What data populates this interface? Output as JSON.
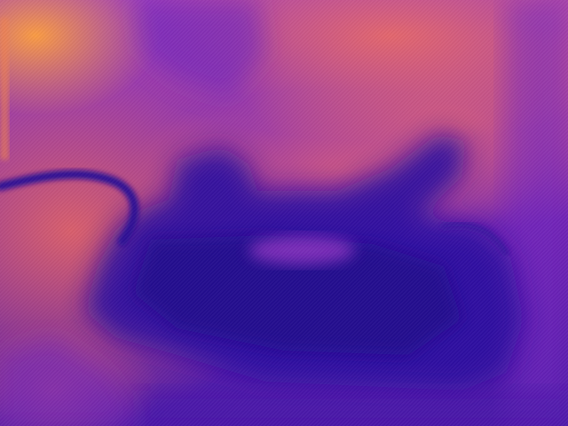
{
  "image": {
    "kind": "thermal-camera-frame",
    "palette": "plasma",
    "colors": {
      "hot": "#ff9a3c",
      "warm": "#e8606a",
      "mid": "#b23aa8",
      "cool": "#5a1cb4",
      "cold": "#2a0f8a"
    }
  }
}
